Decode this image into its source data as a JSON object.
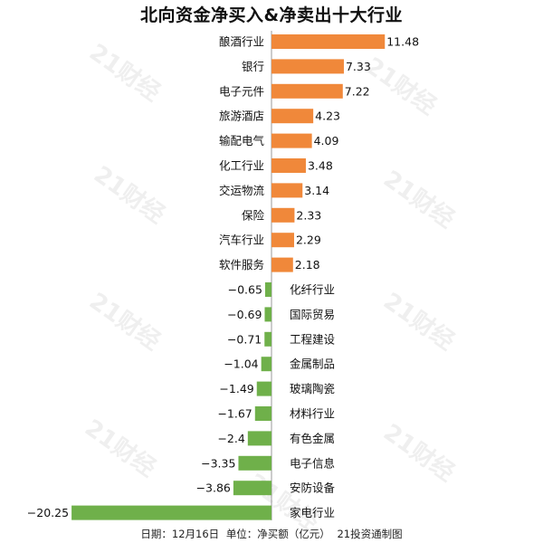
{
  "chart_data": {
    "type": "bar",
    "orientation": "horizontal",
    "title": "北向资金净买入&净卖出十大行业",
    "categories": [
      "酿酒行业",
      "银行",
      "电子元件",
      "旅游酒店",
      "输配电气",
      "化工行业",
      "交运物流",
      "保险",
      "汽车行业",
      "软件服务",
      "化纤行业",
      "国际贸易",
      "工程建设",
      "金属制品",
      "玻璃陶瓷",
      "材料行业",
      "有色金属",
      "电子信息",
      "安防设备",
      "家电行业"
    ],
    "values": [
      11.48,
      7.33,
      7.22,
      4.23,
      4.09,
      3.48,
      3.14,
      2.33,
      2.29,
      2.18,
      -0.65,
      -0.69,
      -0.71,
      -1.04,
      -1.49,
      -1.67,
      -2.4,
      -3.35,
      -3.86,
      -20.25
    ],
    "value_labels": [
      "11.48",
      "7.33",
      "7.22",
      "4.23",
      "4.09",
      "3.48",
      "3.14",
      "2.33",
      "2.29",
      "2.18",
      "−0.65",
      "−0.69",
      "−0.71",
      "−1.04",
      "−1.49",
      "−1.67",
      "−2.4",
      "−3.35",
      "−3.86",
      "−20.25"
    ],
    "colors": {
      "positive": "#f0883a",
      "negative": "#6fb04a",
      "axis": "#999999"
    },
    "grid": false,
    "legend": "none"
  },
  "watermark": {
    "text": "21财经"
  },
  "footer": {
    "date": "日期：12月16日",
    "unit": "单位：净买额（亿元）",
    "source": "21投资通制图"
  }
}
